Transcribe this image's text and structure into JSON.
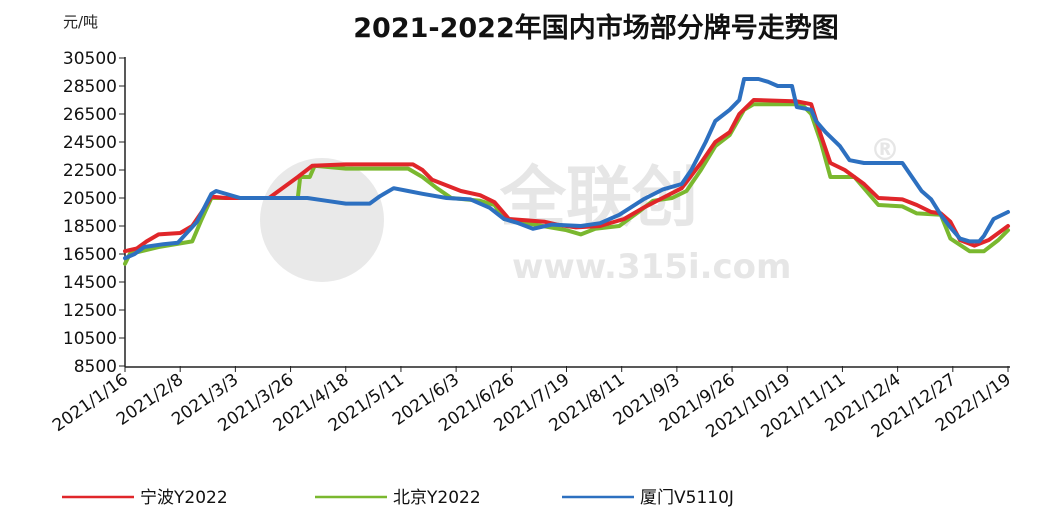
{
  "chart_data": {
    "type": "line",
    "title": "2021-2022年国内市场部分牌号走势图",
    "unit": "元/吨",
    "watermark": {
      "name": "全联创",
      "url": "www.315i.com",
      "mark": "®"
    },
    "y_ticks": [
      "30500",
      "28500",
      "26500",
      "24500",
      "22500",
      "20500",
      "18500",
      "16500",
      "14500",
      "12500",
      "10500",
      "8500"
    ],
    "ylim": [
      8500,
      30500
    ],
    "x_ticks": [
      "2021/1/16",
      "2021/2/8",
      "2021/3/3",
      "2021/3/26",
      "2021/4/18",
      "2021/5/11",
      "2021/6/3",
      "2021/6/26",
      "2021/7/19",
      "2021/8/11",
      "2021/9/3",
      "2021/9/26",
      "2021/10/19",
      "2021/11/11",
      "2021/12/4",
      "2021/12/27",
      "2022/1/19"
    ],
    "x_range_days": [
      0,
      368
    ],
    "grid": false,
    "legend_position": "bottom",
    "series": [
      {
        "name": "宁波Y2022",
        "color": "#e0262a",
        "points": [
          [
            0,
            16700
          ],
          [
            5,
            16900
          ],
          [
            9,
            17400
          ],
          [
            14,
            17900
          ],
          [
            23,
            18000
          ],
          [
            28,
            18500
          ],
          [
            32,
            19500
          ],
          [
            36,
            20600
          ],
          [
            42,
            20500
          ],
          [
            60,
            20500
          ],
          [
            72,
            22000
          ],
          [
            78,
            22800
          ],
          [
            92,
            22900
          ],
          [
            120,
            22900
          ],
          [
            124,
            22500
          ],
          [
            128,
            21800
          ],
          [
            134,
            21400
          ],
          [
            140,
            21000
          ],
          [
            148,
            20700
          ],
          [
            154,
            20200
          ],
          [
            160,
            19000
          ],
          [
            175,
            18800
          ],
          [
            180,
            18600
          ],
          [
            188,
            18400
          ],
          [
            198,
            18500
          ],
          [
            208,
            19000
          ],
          [
            216,
            19800
          ],
          [
            224,
            20500
          ],
          [
            232,
            21200
          ],
          [
            240,
            23000
          ],
          [
            246,
            24500
          ],
          [
            252,
            25200
          ],
          [
            256,
            26500
          ],
          [
            262,
            27500
          ],
          [
            280,
            27400
          ],
          [
            286,
            27200
          ],
          [
            290,
            25000
          ],
          [
            294,
            23000
          ],
          [
            300,
            22500
          ],
          [
            308,
            21500
          ],
          [
            314,
            20500
          ],
          [
            324,
            20400
          ],
          [
            330,
            20000
          ],
          [
            336,
            19500
          ],
          [
            340,
            19400
          ],
          [
            344,
            18800
          ],
          [
            348,
            17500
          ],
          [
            354,
            17100
          ],
          [
            360,
            17500
          ],
          [
            364,
            18000
          ],
          [
            368,
            18500
          ]
        ]
      },
      {
        "name": "北京Y2022",
        "color": "#7ab82f",
        "points": [
          [
            0,
            15800
          ],
          [
            2,
            16500
          ],
          [
            14,
            17000
          ],
          [
            28,
            17400
          ],
          [
            32,
            19000
          ],
          [
            36,
            20500
          ],
          [
            42,
            20500
          ],
          [
            72,
            20500
          ],
          [
            73,
            22000
          ],
          [
            77,
            22000
          ],
          [
            79,
            22800
          ],
          [
            92,
            22600
          ],
          [
            118,
            22600
          ],
          [
            124,
            22000
          ],
          [
            130,
            21200
          ],
          [
            136,
            20500
          ],
          [
            148,
            20300
          ],
          [
            154,
            20000
          ],
          [
            158,
            19000
          ],
          [
            174,
            18500
          ],
          [
            184,
            18200
          ],
          [
            190,
            17900
          ],
          [
            196,
            18300
          ],
          [
            206,
            18500
          ],
          [
            214,
            19500
          ],
          [
            220,
            20300
          ],
          [
            228,
            20500
          ],
          [
            234,
            21000
          ],
          [
            240,
            22500
          ],
          [
            246,
            24200
          ],
          [
            252,
            25000
          ],
          [
            258,
            26800
          ],
          [
            262,
            27200
          ],
          [
            282,
            27200
          ],
          [
            286,
            26500
          ],
          [
            290,
            24500
          ],
          [
            294,
            22000
          ],
          [
            304,
            22000
          ],
          [
            310,
            20800
          ],
          [
            314,
            20000
          ],
          [
            324,
            19900
          ],
          [
            330,
            19400
          ],
          [
            340,
            19300
          ],
          [
            344,
            17600
          ],
          [
            352,
            16700
          ],
          [
            358,
            16700
          ],
          [
            364,
            17500
          ],
          [
            368,
            18200
          ]
        ]
      },
      {
        "name": "厦门V5110J",
        "color": "#2d70c0",
        "points": [
          [
            0,
            16200
          ],
          [
            4,
            16500
          ],
          [
            8,
            17000
          ],
          [
            16,
            17200
          ],
          [
            22,
            17300
          ],
          [
            30,
            18800
          ],
          [
            36,
            20800
          ],
          [
            38,
            21000
          ],
          [
            48,
            20500
          ],
          [
            76,
            20500
          ],
          [
            84,
            20300
          ],
          [
            92,
            20100
          ],
          [
            102,
            20100
          ],
          [
            106,
            20600
          ],
          [
            112,
            21200
          ],
          [
            118,
            21000
          ],
          [
            124,
            20800
          ],
          [
            134,
            20500
          ],
          [
            144,
            20400
          ],
          [
            152,
            19800
          ],
          [
            158,
            19000
          ],
          [
            164,
            18700
          ],
          [
            170,
            18300
          ],
          [
            178,
            18600
          ],
          [
            190,
            18500
          ],
          [
            198,
            18700
          ],
          [
            206,
            19300
          ],
          [
            216,
            20400
          ],
          [
            224,
            21100
          ],
          [
            232,
            21500
          ],
          [
            236,
            22500
          ],
          [
            242,
            24500
          ],
          [
            246,
            26000
          ],
          [
            252,
            26800
          ],
          [
            256,
            27500
          ],
          [
            258,
            29000
          ],
          [
            264,
            29000
          ],
          [
            268,
            28800
          ],
          [
            272,
            28500
          ],
          [
            278,
            28500
          ],
          [
            280,
            27000
          ],
          [
            286,
            26800
          ],
          [
            288,
            26000
          ],
          [
            292,
            25200
          ],
          [
            298,
            24200
          ],
          [
            302,
            23200
          ],
          [
            308,
            23000
          ],
          [
            318,
            23000
          ],
          [
            324,
            23000
          ],
          [
            328,
            22000
          ],
          [
            332,
            21000
          ],
          [
            336,
            20400
          ],
          [
            340,
            19300
          ],
          [
            344,
            18400
          ],
          [
            348,
            17600
          ],
          [
            352,
            17400
          ],
          [
            356,
            17400
          ],
          [
            358,
            17800
          ],
          [
            362,
            19000
          ],
          [
            368,
            19500
          ]
        ]
      }
    ]
  }
}
